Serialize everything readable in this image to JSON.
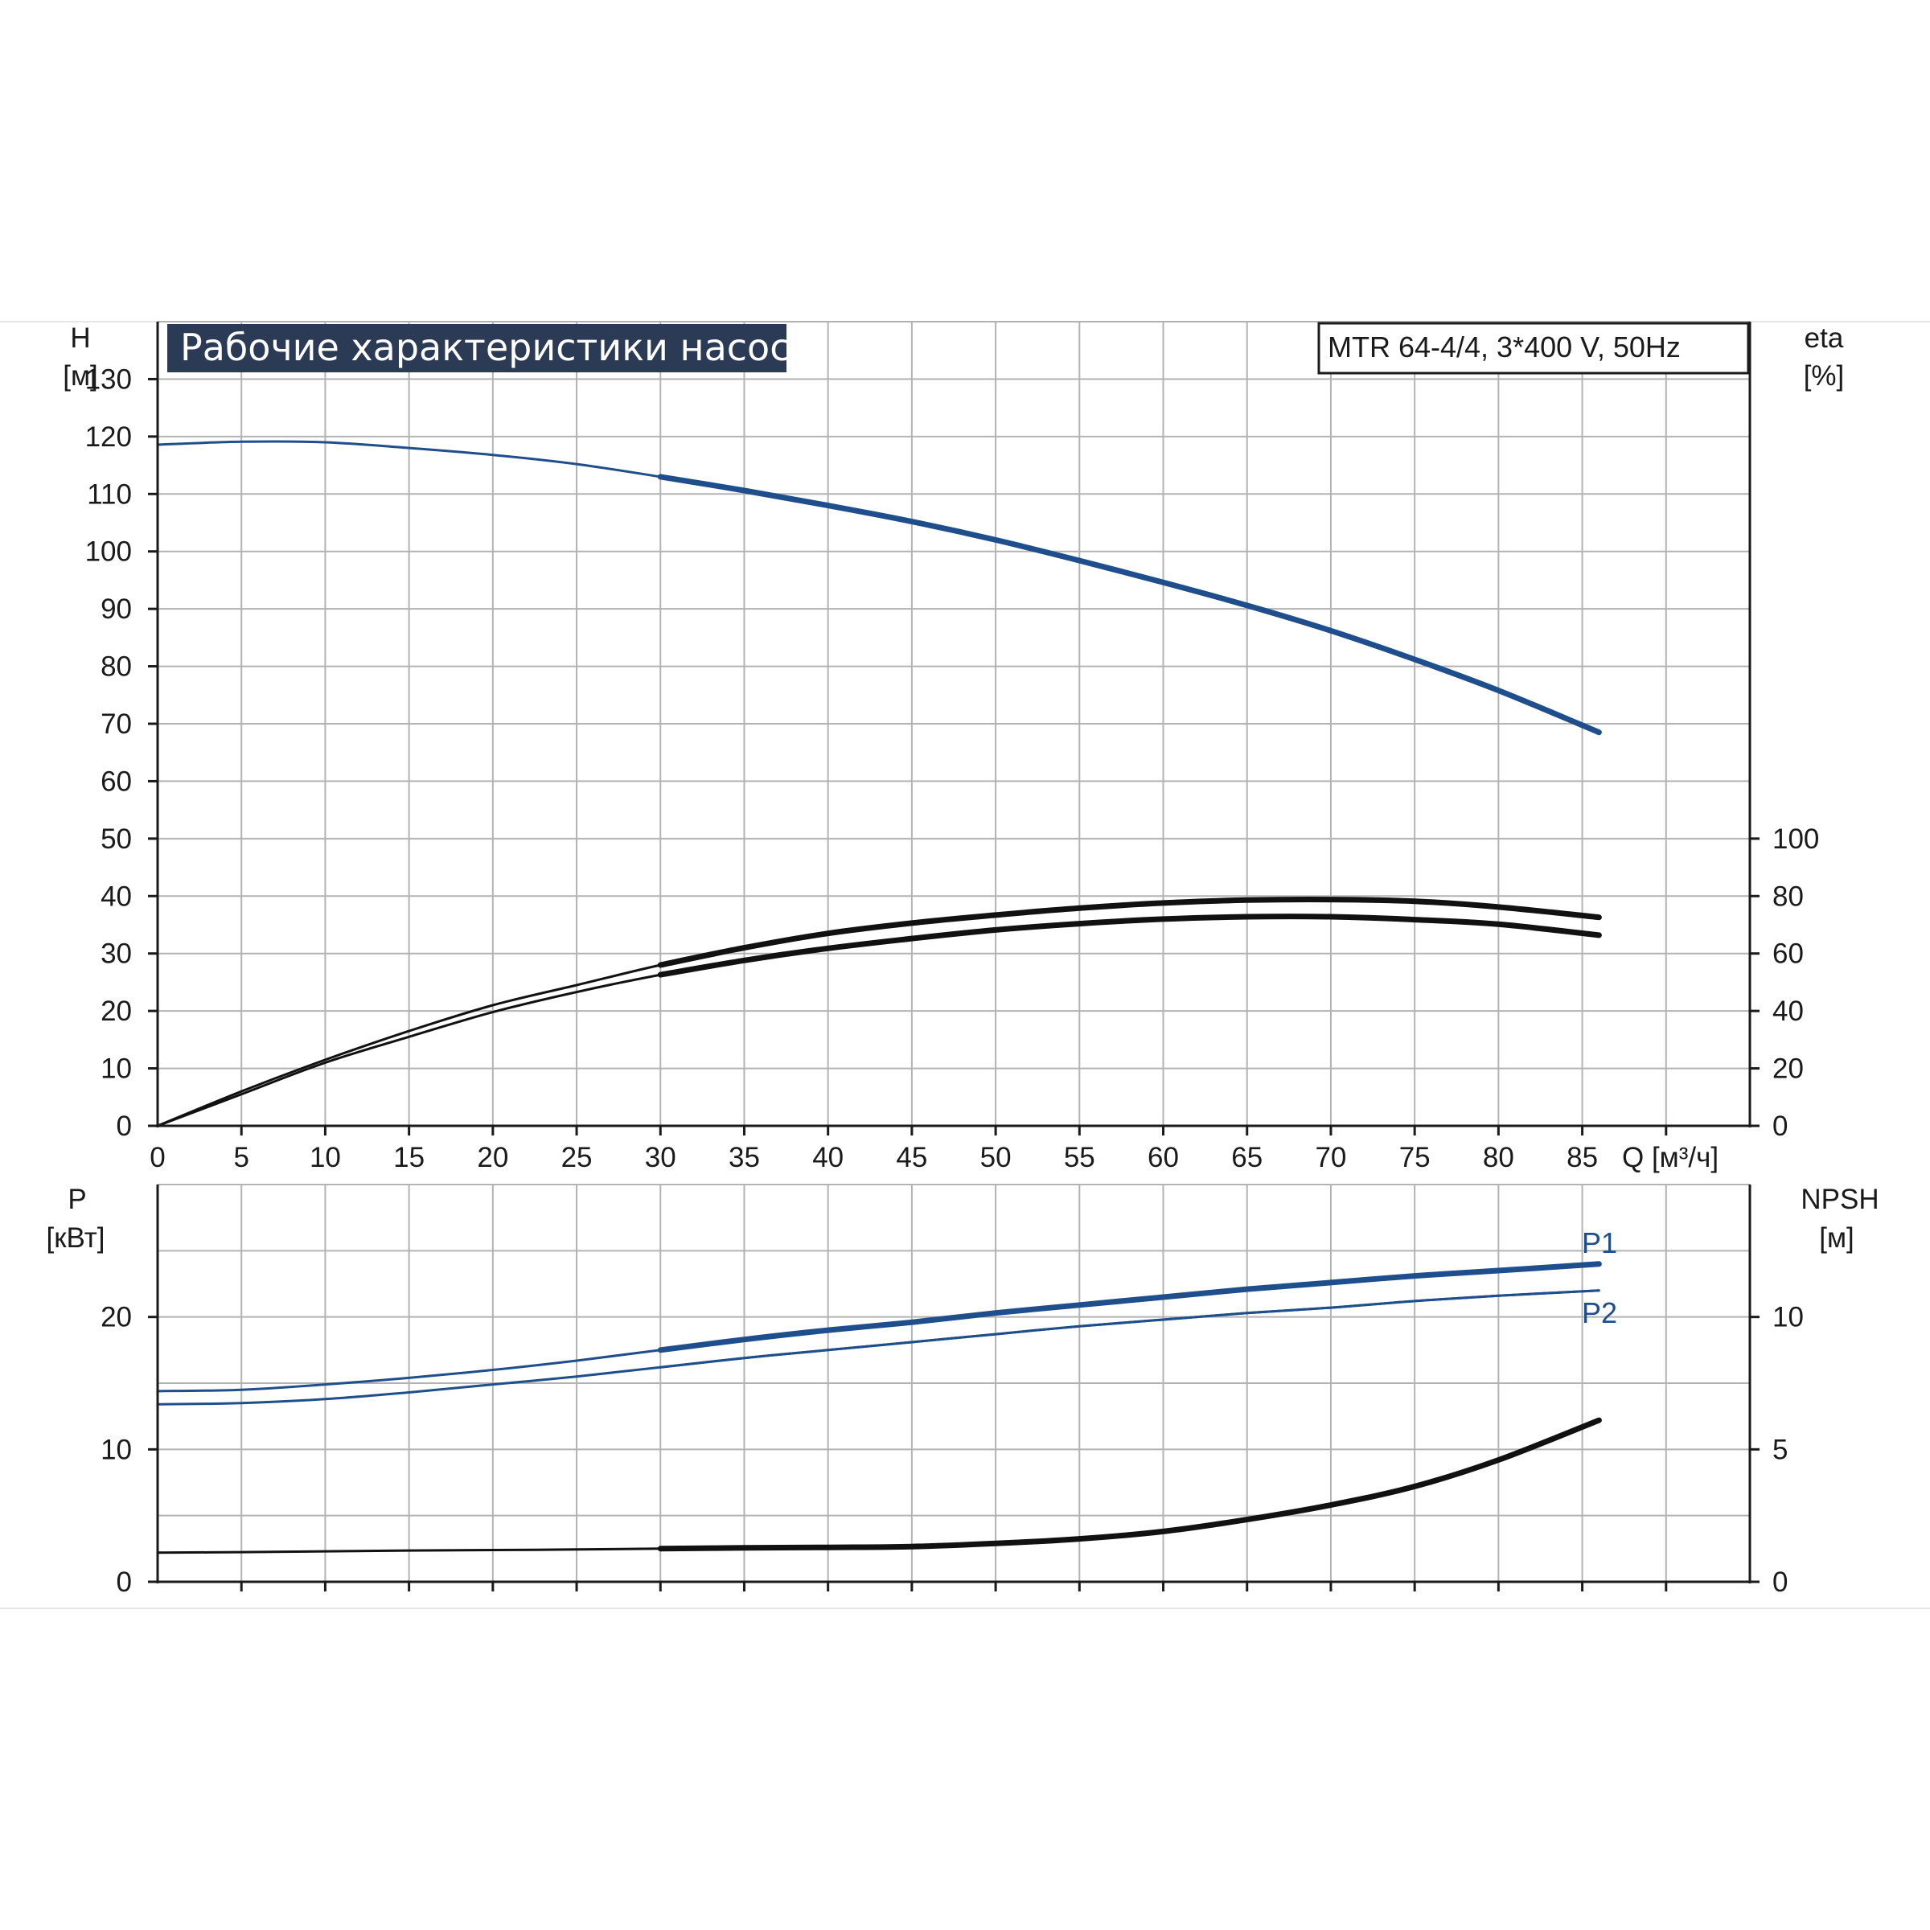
{
  "colors": {
    "grid": "#b3b3b3",
    "axis": "#1a1a1a",
    "blue": "#1f4e8c",
    "black": "#111111",
    "title_bg": "#2b3a55",
    "title_fg": "#ffffff"
  },
  "header": {
    "title": "Рабочие характеристики насоса",
    "model": "MTR 64-4/4, 3*400 V, 50Hz"
  },
  "chart_data": [
    {
      "type": "line",
      "panel": "performance",
      "x_axis": {
        "label": "Q [м³/ч]",
        "range": [
          0,
          95
        ],
        "ticks": [
          0,
          5,
          10,
          15,
          20,
          25,
          30,
          35,
          40,
          45,
          50,
          55,
          60,
          65,
          70,
          75,
          80,
          85
        ]
      },
      "y_left": {
        "label": "H",
        "unit": "[м]",
        "range": [
          0,
          140
        ],
        "ticks": [
          0,
          10,
          20,
          30,
          40,
          50,
          60,
          70,
          80,
          90,
          100,
          110,
          120,
          130
        ]
      },
      "y_right": {
        "label": "eta",
        "unit": "[%]",
        "range": [
          0,
          280
        ],
        "ticks": [
          0,
          20,
          40,
          60,
          80,
          100
        ]
      },
      "grid": true,
      "series": [
        {
          "axis": "left",
          "color": "blue",
          "x": [
            0,
            5,
            10,
            15,
            20,
            25,
            30,
            35,
            40,
            45,
            50,
            55,
            60,
            65,
            70,
            75,
            80,
            86
          ],
          "y": [
            118.6,
            119.1,
            119.0,
            118.0,
            116.8,
            115.2,
            113.0,
            110.6,
            108.0,
            105.2,
            102.0,
            98.4,
            94.6,
            90.6,
            86.2,
            81.2,
            75.8,
            68.5
          ]
        },
        {
          "axis": "right",
          "color": "black",
          "x": [
            0,
            5,
            10,
            15,
            20,
            25,
            30,
            35,
            40,
            45,
            50,
            55,
            60,
            65,
            70,
            75,
            80,
            86
          ],
          "y": [
            0,
            12,
            23,
            33,
            42,
            49,
            56,
            62,
            67,
            70.6,
            73.4,
            75.8,
            77.6,
            78.6,
            78.8,
            78.2,
            76.2,
            72.6
          ]
        },
        {
          "axis": "right",
          "color": "black",
          "x": [
            0,
            5,
            10,
            15,
            20,
            25,
            30,
            35,
            40,
            45,
            50,
            55,
            60,
            65,
            70,
            75,
            80,
            86
          ],
          "y": [
            0,
            11,
            22,
            31,
            39.6,
            46.6,
            52.6,
            57.6,
            61.8,
            65.2,
            68.2,
            70.4,
            72.0,
            72.8,
            72.8,
            71.8,
            70.2,
            66.4
          ]
        }
      ]
    },
    {
      "type": "line",
      "panel": "power_npsh",
      "x_axis": {
        "range": [
          0,
          95
        ]
      },
      "y_left": {
        "label": "P",
        "unit": "[кВт]",
        "range": [
          0,
          30
        ],
        "ticks": [
          0,
          10,
          20
        ]
      },
      "y_right": {
        "label": "NPSH",
        "unit": "[м]",
        "range": [
          0,
          15
        ],
        "ticks": [
          0,
          5,
          10
        ]
      },
      "grid": true,
      "series": [
        {
          "name": "P1",
          "axis": "left",
          "color": "blue",
          "x": [
            0,
            5,
            10,
            15,
            20,
            25,
            30,
            35,
            40,
            45,
            50,
            55,
            60,
            65,
            70,
            75,
            80,
            86
          ],
          "y": [
            14.4,
            14.5,
            14.9,
            15.4,
            16.0,
            16.7,
            17.5,
            18.3,
            19.0,
            19.6,
            20.3,
            20.9,
            21.5,
            22.1,
            22.6,
            23.1,
            23.5,
            24.0
          ]
        },
        {
          "name": "P2",
          "axis": "left",
          "color": "blue",
          "x": [
            0,
            5,
            10,
            15,
            20,
            25,
            30,
            35,
            40,
            45,
            50,
            55,
            60,
            65,
            70,
            75,
            80,
            86
          ],
          "y": [
            13.4,
            13.5,
            13.8,
            14.3,
            14.9,
            15.5,
            16.2,
            16.9,
            17.5,
            18.1,
            18.7,
            19.3,
            19.8,
            20.3,
            20.7,
            21.2,
            21.6,
            22.0
          ]
        },
        {
          "axis": "right",
          "color": "black",
          "x": [
            0,
            5,
            10,
            15,
            20,
            25,
            30,
            35,
            40,
            45,
            50,
            55,
            60,
            65,
            70,
            75,
            80,
            86
          ],
          "y": [
            1.1,
            1.12,
            1.15,
            1.18,
            1.2,
            1.22,
            1.25,
            1.28,
            1.3,
            1.33,
            1.45,
            1.62,
            1.9,
            2.35,
            2.9,
            3.6,
            4.6,
            6.1
          ]
        }
      ]
    }
  ]
}
